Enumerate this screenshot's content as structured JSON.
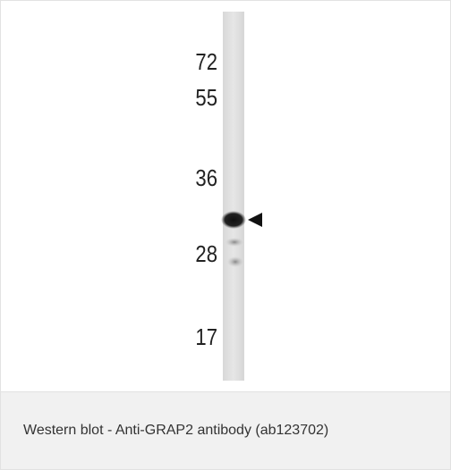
{
  "image": {
    "markers": [
      "72",
      "55",
      "36",
      "28",
      "17"
    ]
  },
  "caption": "Western blot - Anti-GRAP2 antibody (ab123702)"
}
